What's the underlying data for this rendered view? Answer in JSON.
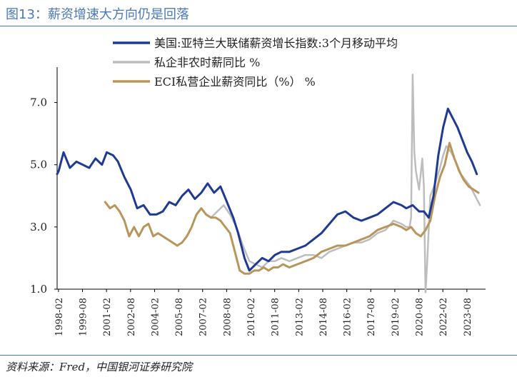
{
  "header": {
    "title": "图13：薪资增速大方向仍是回落"
  },
  "footer": {
    "source": "资料来源：Fred，中国银河证券研究院"
  },
  "chart_data": {
    "type": "line",
    "title": "图13：薪资增速大方向仍是回落",
    "xlabel": "",
    "ylabel": "",
    "xlim": [
      1998.0,
      2024.75
    ],
    "ylim": [
      1.0,
      8.0
    ],
    "yticks": [
      1.0,
      3.0,
      5.0,
      7.0
    ],
    "ytick_labels": [
      "1.0",
      "3.0",
      "5.0",
      "7.0"
    ],
    "xticks": [
      1998.083,
      1999.583,
      2001.083,
      2002.583,
      2004.083,
      2005.583,
      2007.083,
      2008.583,
      2010.083,
      2011.583,
      2013.083,
      2014.583,
      2016.083,
      2017.583,
      2019.083,
      2020.583,
      2022.083,
      2023.583
    ],
    "xtick_labels": [
      "1998-02",
      "1999-08",
      "2001-02",
      "2002-08",
      "2004-02",
      "2005-08",
      "2007-02",
      "2008-08",
      "2010-02",
      "2011-08",
      "2013-02",
      "2014-08",
      "2016-02",
      "2017-08",
      "2019-02",
      "2020-08",
      "2022-02",
      "2023-08"
    ],
    "legend_position": "top",
    "series": [
      {
        "name": "美国:亚特兰大联储薪资增长指数:3个月移动平均",
        "color": "#1f3a93",
        "x": [
          1998.0,
          1998.1,
          1998.4,
          1998.8,
          1999.2,
          1999.6,
          2000.0,
          2000.4,
          2000.8,
          2001.1,
          2001.5,
          2001.8,
          2002.2,
          2002.6,
          2003.0,
          2003.4,
          2003.8,
          2004.2,
          2004.6,
          2005.0,
          2005.4,
          2005.8,
          2006.2,
          2006.6,
          2007.0,
          2007.4,
          2007.8,
          2008.2,
          2008.6,
          2009.0,
          2009.3,
          2009.7,
          2010.0,
          2010.4,
          2010.8,
          2011.2,
          2011.6,
          2012.0,
          2012.5,
          2013.0,
          2013.5,
          2014.0,
          2014.5,
          2015.0,
          2015.5,
          2016.0,
          2016.5,
          2017.0,
          2017.5,
          2018.0,
          2018.5,
          2019.0,
          2019.5,
          2019.8,
          2020.2,
          2020.6,
          2020.9,
          2021.2,
          2021.5,
          2021.8,
          2022.1,
          2022.4,
          2022.7,
          2023.0,
          2023.3,
          2023.6,
          2023.9,
          2024.2
        ],
        "y": [
          4.7,
          4.8,
          5.4,
          4.9,
          5.1,
          5.0,
          4.9,
          5.2,
          5.0,
          5.4,
          5.3,
          5.1,
          4.6,
          4.2,
          3.6,
          3.7,
          3.4,
          3.4,
          3.5,
          3.8,
          3.7,
          4.0,
          4.2,
          3.9,
          4.1,
          4.4,
          4.1,
          4.3,
          3.8,
          3.3,
          2.8,
          2.0,
          1.6,
          1.8,
          2.0,
          1.9,
          2.1,
          2.2,
          2.2,
          2.3,
          2.4,
          2.6,
          2.8,
          3.1,
          3.4,
          3.5,
          3.3,
          3.2,
          3.3,
          3.4,
          3.6,
          3.8,
          3.7,
          3.6,
          3.7,
          3.5,
          3.5,
          3.3,
          4.0,
          5.3,
          6.2,
          6.8,
          6.5,
          6.2,
          5.8,
          5.4,
          5.1,
          4.7
        ]
      },
      {
        "name": "私企非农时薪同比 %",
        "color": "#bdbdbd",
        "x": [
          2007.0,
          2007.3,
          2007.6,
          2008.0,
          2008.4,
          2008.8,
          2009.2,
          2009.6,
          2010.0,
          2010.4,
          2010.8,
          2011.2,
          2011.6,
          2012.0,
          2012.5,
          2013.0,
          2013.5,
          2014.0,
          2014.5,
          2015.0,
          2015.5,
          2016.0,
          2016.5,
          2017.0,
          2017.5,
          2018.0,
          2018.5,
          2019.0,
          2019.5,
          2019.8,
          2020.0,
          2020.1,
          2020.2,
          2020.3,
          2020.4,
          2020.6,
          2020.8,
          2020.9,
          2021.0,
          2021.1,
          2021.3,
          2021.6,
          2021.9,
          2022.1,
          2022.3,
          2022.6,
          2022.9,
          2023.2,
          2023.5,
          2023.8,
          2024.1,
          2024.4
        ],
        "y": [
          3.6,
          3.4,
          3.3,
          3.5,
          3.7,
          3.4,
          3.0,
          2.4,
          1.9,
          1.8,
          1.7,
          1.9,
          1.9,
          2.0,
          1.9,
          2.0,
          2.1,
          2.1,
          2.0,
          2.2,
          2.3,
          2.4,
          2.5,
          2.5,
          2.6,
          2.8,
          2.9,
          3.2,
          3.1,
          3.0,
          3.0,
          3.3,
          7.9,
          5.4,
          4.8,
          4.2,
          5.2,
          4.3,
          0.9,
          1.8,
          4.0,
          4.4,
          4.9,
          5.3,
          5.6,
          5.4,
          5.1,
          4.7,
          4.5,
          4.3,
          4.0,
          3.7
        ]
      },
      {
        "name": "ECI私营企业薪资同比（%） %",
        "color": "#b8955a",
        "x": [
          2001.0,
          2001.3,
          2001.6,
          2001.9,
          2002.2,
          2002.5,
          2002.8,
          2003.1,
          2003.4,
          2003.7,
          2004.0,
          2004.3,
          2004.6,
          2004.9,
          2005.2,
          2005.5,
          2005.8,
          2006.1,
          2006.4,
          2006.7,
          2007.0,
          2007.3,
          2007.6,
          2007.9,
          2008.2,
          2008.5,
          2008.8,
          2009.1,
          2009.4,
          2009.7,
          2010.0,
          2010.3,
          2010.6,
          2010.9,
          2011.2,
          2011.5,
          2011.8,
          2012.1,
          2012.5,
          2013.0,
          2013.5,
          2014.0,
          2014.5,
          2015.0,
          2015.5,
          2016.0,
          2016.5,
          2017.0,
          2017.5,
          2018.0,
          2018.5,
          2019.0,
          2019.5,
          2019.8,
          2020.1,
          2020.4,
          2020.7,
          2021.0,
          2021.3,
          2021.6,
          2021.9,
          2022.2,
          2022.5,
          2022.8,
          2023.1,
          2023.4,
          2023.7,
          2024.0,
          2024.3
        ],
        "y": [
          3.8,
          3.6,
          3.7,
          3.5,
          3.2,
          2.7,
          3.0,
          2.7,
          3.0,
          3.1,
          2.7,
          2.8,
          2.7,
          2.6,
          2.5,
          2.4,
          2.5,
          2.7,
          3.0,
          3.4,
          3.6,
          3.4,
          3.3,
          3.3,
          3.2,
          3.0,
          2.8,
          2.2,
          1.6,
          1.5,
          1.5,
          1.6,
          1.6,
          1.7,
          1.6,
          1.7,
          1.7,
          1.8,
          1.7,
          1.8,
          1.9,
          2.0,
          2.2,
          2.3,
          2.4,
          2.4,
          2.5,
          2.6,
          2.7,
          2.9,
          3.0,
          3.1,
          3.0,
          2.9,
          3.0,
          2.8,
          2.7,
          2.9,
          3.2,
          4.0,
          4.6,
          5.0,
          5.7,
          5.2,
          4.8,
          4.5,
          4.3,
          4.2,
          4.1
        ]
      }
    ]
  }
}
